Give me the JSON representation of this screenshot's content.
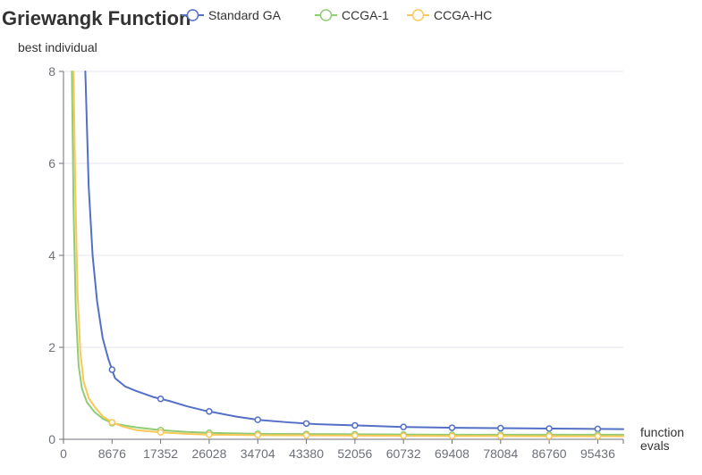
{
  "chart_data": {
    "type": "line",
    "title": "Griewangk Function",
    "ylabel": "best individual",
    "xlabel": "function evals",
    "xlabel_lines": [
      "function",
      "evals"
    ],
    "xlim": [
      0,
      100000
    ],
    "ylim": [
      0,
      8
    ],
    "xticks": [
      0,
      8676,
      17352,
      26028,
      34704,
      43380,
      52056,
      60732,
      69408,
      78084,
      86760,
      95436
    ],
    "yticks": [
      0,
      2,
      4,
      6,
      8
    ],
    "grid": true,
    "legend_position": "top",
    "series": [
      {
        "name": "Standard GA",
        "color": "#5470c6",
        "x": [
          3900,
          4500,
          5200,
          6000,
          7000,
          8000,
          9200,
          11000,
          13000,
          16000,
          19000,
          22000,
          25000,
          28000,
          31000,
          35000,
          40000,
          45000,
          50000,
          55000,
          60000,
          65000,
          70000,
          75000,
          80000,
          85000,
          90000,
          95000,
          100000
        ],
        "y": [
          8.0,
          5.5,
          4.0,
          3.0,
          2.2,
          1.75,
          1.33,
          1.15,
          1.05,
          0.92,
          0.83,
          0.72,
          0.63,
          0.56,
          0.49,
          0.42,
          0.37,
          0.33,
          0.31,
          0.29,
          0.27,
          0.26,
          0.25,
          0.245,
          0.24,
          0.235,
          0.23,
          0.225,
          0.22
        ],
        "markers_x": [
          8676,
          17352,
          26028,
          34704,
          43380,
          52056,
          60732,
          69408,
          78084,
          86760,
          95436
        ]
      },
      {
        "name": "CCGA-1",
        "color": "#91cc75",
        "x": [
          1500,
          1800,
          2200,
          2700,
          3300,
          4200,
          5500,
          7000,
          8676,
          11000,
          13000,
          17352,
          22000,
          26028,
          30000,
          34704,
          43380,
          52056,
          60732,
          69408,
          78084,
          86760,
          95436,
          100000
        ],
        "y": [
          8.0,
          5.0,
          2.8,
          1.6,
          1.1,
          0.8,
          0.6,
          0.45,
          0.35,
          0.3,
          0.26,
          0.2,
          0.16,
          0.14,
          0.13,
          0.12,
          0.115,
          0.11,
          0.105,
          0.1,
          0.1,
          0.1,
          0.1,
          0.1
        ],
        "markers_x": [
          8676,
          17352,
          26028,
          34704,
          43380,
          52056,
          60732,
          69408,
          78084,
          86760,
          95436
        ]
      },
      {
        "name": "CCGA-HC",
        "color": "#fac858",
        "x": [
          1800,
          2100,
          2500,
          3000,
          3600,
          4500,
          5600,
          7000,
          8676,
          10500,
          13000,
          17352,
          22000,
          26028,
          34704,
          43380,
          52056,
          60732,
          69408,
          78084,
          86760,
          95436,
          100000
        ],
        "y": [
          8.0,
          5.5,
          3.2,
          1.9,
          1.25,
          0.9,
          0.7,
          0.5,
          0.37,
          0.28,
          0.2,
          0.15,
          0.12,
          0.1,
          0.09,
          0.085,
          0.08,
          0.075,
          0.07,
          0.07,
          0.065,
          0.065,
          0.065
        ],
        "markers_x": [
          8676,
          17352,
          26028,
          34704,
          43380,
          52056,
          60732,
          69408,
          78084,
          86760,
          95436
        ]
      }
    ]
  }
}
